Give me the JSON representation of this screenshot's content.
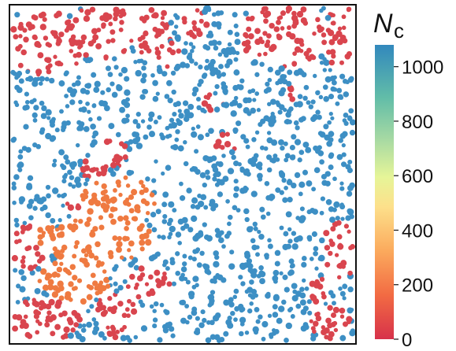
{
  "colorbar": {
    "title_main": "N",
    "title_sub": "c",
    "ticks": [
      "0",
      "200",
      "400",
      "600",
      "800",
      "1000"
    ],
    "range": [
      0,
      1080
    ],
    "colors": [
      "#d7314a",
      "#f26b43",
      "#fbaa5d",
      "#fde08b",
      "#e6f598",
      "#a6d9a3",
      "#62bda8",
      "#3288bd"
    ]
  },
  "clusters": {
    "percolating_color": "#3d8fc4",
    "orange_color": "#ef7a41",
    "red_color": "#d9454e",
    "percolating_size": 1040,
    "orange_size": 190
  }
}
